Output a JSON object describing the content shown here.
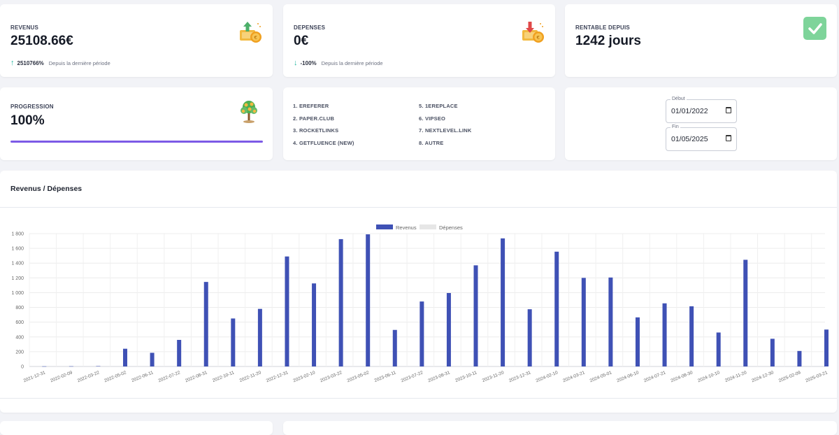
{
  "cards": {
    "revenus": {
      "label": "REVENUS",
      "value": "25108.66€",
      "trend_value": "2510766%",
      "trend_desc": "Depuis la dernière période",
      "icon": "money-up-icon"
    },
    "depenses": {
      "label": "DEPENSES",
      "value": "0€",
      "trend_value": "-100%",
      "trend_desc": "Depuis la dernière période",
      "icon": "money-down-icon"
    },
    "rentable": {
      "label": "RENTABLE DEPUIS",
      "value": "1242 jours",
      "icon": "check-icon"
    },
    "progression": {
      "label": "PROGRESSION",
      "value": "100%",
      "progress": 1.0,
      "icon": "money-tree-icon"
    }
  },
  "platforms": [
    "1. EREFERER",
    "5. 1EREPLACE",
    "2. PAPER.CLUB",
    "6. VIPSEO",
    "3. ROCKETLINKS",
    "7. NEXTLEVEL.LINK",
    "4. GETFLUENCE (NEW)",
    "8. AUTRE"
  ],
  "date_range": {
    "start_label": "Début",
    "start_value": "01/01/2022",
    "end_label": "Fin",
    "end_value": "01/05/2025"
  },
  "colors": {
    "accent": "#7c5ae6",
    "revenue_bar": "#3f51b5",
    "depense_bar": "#e6e6e6",
    "trend_up": "#22b8a0",
    "check_bg": "#7ed49a"
  },
  "chart_data": {
    "type": "bar",
    "title": "Revenus / Dépenses",
    "legend": [
      "Revenus",
      "Dépenses"
    ],
    "legend_position": "top",
    "grid": true,
    "ylim": [
      0,
      1800
    ],
    "yticks": [
      "1 800",
      "1 600",
      "1 400",
      "1 200",
      "1 000",
      "800",
      "600",
      "400",
      "200",
      "0"
    ],
    "categories": [
      "2021-12-31",
      "2022-02-09",
      "2022-03-22",
      "2022-05-02",
      "2022-06-11",
      "2022-07-22",
      "2022-08-31",
      "2022-10-11",
      "2022-11-20",
      "2022-12-31",
      "2023-02-10",
      "2023-03-22",
      "2023-05-02",
      "2023-06-11",
      "2023-07-22",
      "2023-08-31",
      "2023-10-11",
      "2023-11-20",
      "2023-12-31",
      "2024-02-10",
      "2024-03-21",
      "2024-05-01",
      "2024-06-10",
      "2024-07-21",
      "2024-08-30",
      "2024-10-10",
      "2024-11-20",
      "2024-12-30",
      "2025-02-09",
      "2025-03-21"
    ],
    "series": [
      {
        "name": "Revenus",
        "values": [
          2,
          3,
          5,
          240,
          185,
          360,
          1145,
          650,
          780,
          1490,
          1125,
          1725,
          1790,
          495,
          880,
          995,
          1370,
          1735,
          775,
          1555,
          1200,
          1205,
          665,
          855,
          815,
          460,
          1445,
          375,
          210,
          500
        ]
      },
      {
        "name": "Dépenses",
        "values": [
          0,
          0,
          0,
          0,
          0,
          0,
          0,
          0,
          0,
          0,
          0,
          0,
          0,
          0,
          0,
          0,
          0,
          0,
          0,
          0,
          0,
          0,
          0,
          0,
          0,
          0,
          0,
          0,
          0,
          0
        ]
      }
    ]
  }
}
